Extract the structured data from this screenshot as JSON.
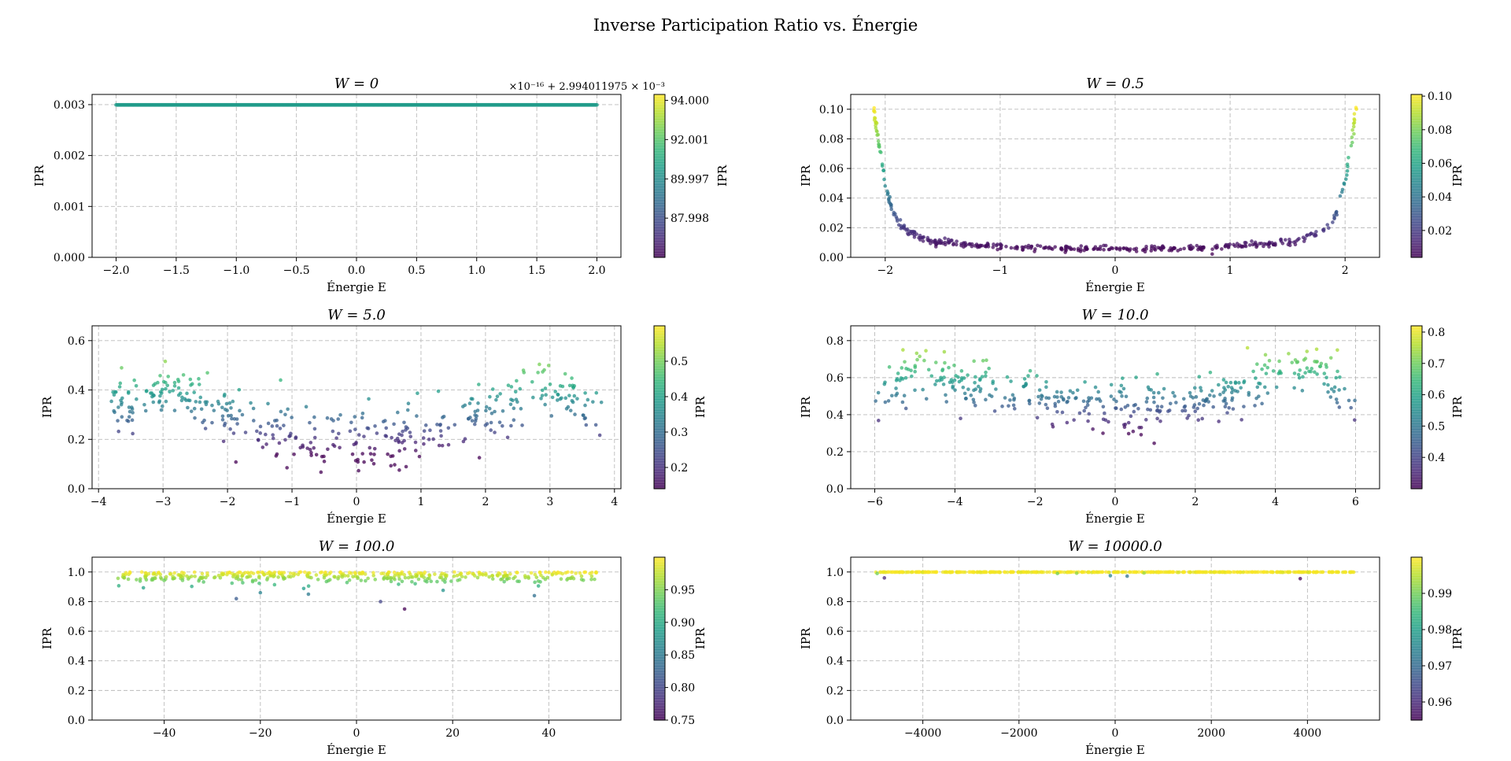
{
  "suptitle": "Inverse Participation Ratio vs. Énergie",
  "colormap": [
    "#440154",
    "#482878",
    "#3e4989",
    "#31688e",
    "#26828e",
    "#1f9e89",
    "#35b779",
    "#6ece58",
    "#b5de2b",
    "#fde725"
  ],
  "chart_data": [
    {
      "type": "scatter",
      "title": "W = 0",
      "xlabel": "Énergie E",
      "ylabel": "IPR",
      "xlim": [
        -2.2,
        2.2
      ],
      "ylim": [
        0,
        0.0032
      ],
      "xticks": [
        -2.0,
        -1.5,
        -1.0,
        -0.5,
        0.0,
        0.5,
        1.0,
        1.5,
        2.0
      ],
      "xtick_labels": [
        "−2.0",
        "−1.5",
        "−1.0",
        "−0.5",
        "0.0",
        "0.5",
        "1.0",
        "1.5",
        "2.0"
      ],
      "yticks": [
        0,
        0.001,
        0.002,
        0.003
      ],
      "ytick_labels": [
        "0.000",
        "0.001",
        "0.002",
        "0.003"
      ],
      "clim": [
        86.0,
        94.3
      ],
      "cbar_label": "IPR",
      "cbar_ticks": [
        87.998,
        89.997,
        92.001,
        94.0
      ],
      "cbar_tick_labels": [
        "87.998",
        "89.997",
        "92.001",
        "94.000"
      ],
      "cbar_offset_text": "×10⁻¹⁶ + 2.994011975 × 10⁻³",
      "grid": true,
      "x_range": [
        -2.0,
        2.0
      ],
      "ipr_constant": 0.002994011975,
      "color_value": 90.5
    },
    {
      "type": "scatter",
      "title": "W = 0.5",
      "xlabel": "Énergie E",
      "ylabel": "IPR",
      "xlim": [
        -2.3,
        2.3
      ],
      "ylim": [
        0,
        0.11
      ],
      "xticks": [
        -2,
        -1,
        0,
        1,
        2
      ],
      "xtick_labels": [
        "−2",
        "−1",
        "0",
        "1",
        "2"
      ],
      "yticks": [
        0,
        0.02,
        0.04,
        0.06,
        0.08,
        0.1
      ],
      "ytick_labels": [
        "0.00",
        "0.02",
        "0.04",
        "0.06",
        "0.08",
        "0.10"
      ],
      "clim": [
        0.004,
        0.101
      ],
      "cbar_label": "IPR",
      "cbar_ticks": [
        0.02,
        0.04,
        0.06,
        0.08,
        0.1
      ],
      "cbar_tick_labels": [
        "0.02",
        "0.04",
        "0.06",
        "0.08",
        "0.10"
      ],
      "grid": true,
      "x_range": [
        -2.1,
        2.1
      ],
      "profile": [
        [
          -2.1,
          0.1
        ],
        [
          -2.05,
          0.075
        ],
        [
          -2.0,
          0.05
        ],
        [
          -1.95,
          0.035
        ],
        [
          -1.9,
          0.025
        ],
        [
          -1.8,
          0.017
        ],
        [
          -1.6,
          0.011
        ],
        [
          -1.2,
          0.008
        ],
        [
          -0.5,
          0.006
        ],
        [
          0,
          0.006
        ],
        [
          0.5,
          0.006
        ],
        [
          1.2,
          0.008
        ],
        [
          1.6,
          0.011
        ],
        [
          1.8,
          0.017
        ],
        [
          1.9,
          0.025
        ],
        [
          1.95,
          0.035
        ],
        [
          2.0,
          0.05
        ],
        [
          2.05,
          0.075
        ],
        [
          2.1,
          0.1
        ]
      ],
      "noise": 0.0025
    },
    {
      "type": "scatter",
      "title": "W = 5.0",
      "xlabel": "Énergie E",
      "ylabel": "IPR",
      "xlim": [
        -4.1,
        4.1
      ],
      "ylim": [
        0,
        0.66
      ],
      "xticks": [
        -4,
        -3,
        -2,
        -1,
        0,
        1,
        2,
        3,
        4
      ],
      "xtick_labels": [
        "−4",
        "−3",
        "−2",
        "−1",
        "0",
        "1",
        "2",
        "3",
        "4"
      ],
      "yticks": [
        0,
        0.2,
        0.4,
        0.6
      ],
      "ytick_labels": [
        "0.0",
        "0.2",
        "0.4",
        "0.6"
      ],
      "clim": [
        0.14,
        0.6
      ],
      "cbar_label": "IPR",
      "cbar_ticks": [
        0.2,
        0.3,
        0.4,
        0.5
      ],
      "cbar_tick_labels": [
        "0.2",
        "0.3",
        "0.4",
        "0.5"
      ],
      "grid": true,
      "x_range": [
        -3.8,
        3.8
      ],
      "profile": [
        [
          -3.8,
          0.3
        ],
        [
          -3.3,
          0.37
        ],
        [
          -2.9,
          0.42
        ],
        [
          -2.5,
          0.37
        ],
        [
          -2.0,
          0.3
        ],
        [
          -1.5,
          0.25
        ],
        [
          -1.0,
          0.22
        ],
        [
          -0.5,
          0.19
        ],
        [
          0,
          0.18
        ],
        [
          0.5,
          0.19
        ],
        [
          1.0,
          0.22
        ],
        [
          1.5,
          0.25
        ],
        [
          2.0,
          0.3
        ],
        [
          2.5,
          0.37
        ],
        [
          2.9,
          0.42
        ],
        [
          3.3,
          0.37
        ],
        [
          3.8,
          0.34
        ]
      ],
      "noise": 0.06
    },
    {
      "type": "scatter",
      "title": "W = 10.0",
      "xlabel": "Énergie E",
      "ylabel": "IPR",
      "xlim": [
        -6.6,
        6.6
      ],
      "ylim": [
        0,
        0.88
      ],
      "xticks": [
        -6,
        -4,
        -2,
        0,
        2,
        4,
        6
      ],
      "xtick_labels": [
        "−6",
        "−4",
        "−2",
        "0",
        "2",
        "4",
        "6"
      ],
      "yticks": [
        0,
        0.2,
        0.4,
        0.6,
        0.8
      ],
      "ytick_labels": [
        "0.0",
        "0.2",
        "0.4",
        "0.6",
        "0.8"
      ],
      "clim": [
        0.3,
        0.82
      ],
      "cbar_label": "IPR",
      "cbar_ticks": [
        0.4,
        0.5,
        0.6,
        0.7,
        0.8
      ],
      "cbar_tick_labels": [
        "0.4",
        "0.5",
        "0.6",
        "0.7",
        "0.8"
      ],
      "grid": true,
      "x_range": [
        -6.0,
        6.0
      ],
      "profile": [
        [
          -6,
          0.45
        ],
        [
          -5.5,
          0.55
        ],
        [
          -5,
          0.66
        ],
        [
          -4.5,
          0.64
        ],
        [
          -4,
          0.58
        ],
        [
          -3,
          0.53
        ],
        [
          -2,
          0.5
        ],
        [
          -1,
          0.45
        ],
        [
          0,
          0.44
        ],
        [
          1,
          0.45
        ],
        [
          2,
          0.48
        ],
        [
          3,
          0.52
        ],
        [
          4,
          0.6
        ],
        [
          4.5,
          0.64
        ],
        [
          5,
          0.66
        ],
        [
          5.5,
          0.6
        ],
        [
          6,
          0.45
        ]
      ],
      "noise": 0.07
    },
    {
      "type": "scatter",
      "title": "W = 100.0",
      "xlabel": "Énergie E",
      "ylabel": "IPR",
      "xlim": [
        -55,
        55
      ],
      "ylim": [
        0,
        1.1
      ],
      "xticks": [
        -40,
        -20,
        0,
        20,
        40
      ],
      "xtick_labels": [
        "−40",
        "−20",
        "0",
        "20",
        "40"
      ],
      "yticks": [
        0,
        0.2,
        0.4,
        0.6,
        0.8,
        1.0
      ],
      "ytick_labels": [
        "0.0",
        "0.2",
        "0.4",
        "0.6",
        "0.8",
        "1.0"
      ],
      "clim": [
        0.75,
        1.0
      ],
      "cbar_label": "IPR",
      "cbar_ticks": [
        0.75,
        0.8,
        0.85,
        0.9,
        0.95
      ],
      "cbar_tick_labels": [
        "0.75",
        "0.80",
        "0.85",
        "0.90",
        "0.95"
      ],
      "grid": true,
      "x_range": [
        -50,
        50
      ],
      "profile": [
        [
          -50,
          0.95
        ],
        [
          50,
          0.95
        ]
      ],
      "noise": 0.04
    },
    {
      "type": "scatter",
      "title": "W = 10000.0",
      "xlabel": "Énergie E",
      "ylabel": "IPR",
      "xlim": [
        -5500,
        5500
      ],
      "ylim": [
        0,
        1.1
      ],
      "xticks": [
        -4000,
        -2000,
        0,
        2000,
        4000
      ],
      "xtick_labels": [
        "−4000",
        "−2000",
        "0",
        "2000",
        "4000"
      ],
      "yticks": [
        0,
        0.2,
        0.4,
        0.6,
        0.8,
        1.0
      ],
      "ytick_labels": [
        "0.0",
        "0.2",
        "0.4",
        "0.6",
        "0.8",
        "1.0"
      ],
      "clim": [
        0.955,
        1.0
      ],
      "cbar_label": "IPR",
      "cbar_ticks": [
        0.96,
        0.97,
        0.98,
        0.99
      ],
      "cbar_tick_labels": [
        "0.96",
        "0.97",
        "0.98",
        "0.99"
      ],
      "grid": true,
      "x_range": [
        -5000,
        5000
      ],
      "profile": [
        [
          -5000,
          0.999
        ],
        [
          5000,
          0.999
        ]
      ],
      "noise": 0.001,
      "outliers": [
        [
          -4800,
          0.96
        ],
        [
          -100,
          0.975
        ],
        [
          250,
          0.972
        ],
        [
          3850,
          0.955
        ],
        [
          -4950,
          0.99
        ],
        [
          -1200,
          0.99
        ],
        [
          -800,
          0.992
        ],
        [
          600,
          0.993
        ]
      ]
    }
  ]
}
